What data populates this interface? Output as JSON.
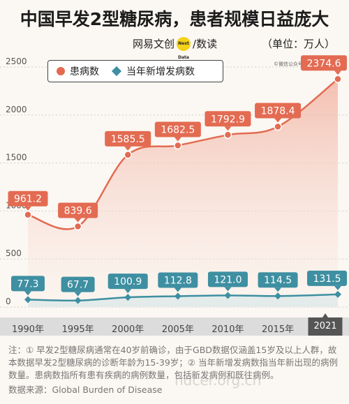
{
  "title": "中国早发2型糖尿病，患者规模日益庞大",
  "brand": {
    "left": "网易文创",
    "logo": "Next Data",
    "right": "/数读"
  },
  "unit": "（单位：万人）",
  "credit": "©微信公众号：谨慎君",
  "colors": {
    "patients": "#e36b52",
    "new_cases": "#3e8fa1"
  },
  "chart_data": {
    "type": "line",
    "x": [
      "1990年",
      "1995年",
      "2000年",
      "2005年",
      "2010年",
      "2015年",
      "2021年"
    ],
    "x_years": [
      1990,
      1995,
      2000,
      2005,
      2010,
      2015,
      2021
    ],
    "yticks": [
      "0",
      "500",
      "1000",
      "1500",
      "2000",
      "2500"
    ],
    "ylim": [
      0,
      2500
    ],
    "legend_position": "top-left",
    "series": [
      {
        "name": "患病数",
        "values": [
          961.2,
          839.6,
          1585.5,
          1682.5,
          1792.9,
          1878.4,
          2374.6
        ],
        "labels": [
          "961.2",
          "839.6",
          "1585.5",
          "1682.5",
          "1792.9",
          "1878.4",
          "2374.6"
        ]
      },
      {
        "name": "当年新增发病数",
        "values": [
          77.3,
          67.7,
          100.9,
          112.8,
          121.0,
          114.5,
          131.5
        ],
        "labels": [
          "77.3",
          "67.7",
          "100.9",
          "112.8",
          "121.0",
          "114.5",
          "131.5"
        ]
      }
    ]
  },
  "notes": "注：① 早发2型糖尿病通常在40岁前确诊，由于GBD数据仅涵盖15岁及以上人群，故本数据早发2型糖尿病的诊断年龄为15-39岁；② 当年新增发病数指当年新出现的病例数量。患病数指所有患有疾病的病例数量，包括新发病例和既往病例。",
  "source": "数据来源：Global Burden of Disease",
  "watermark": "hdcer.org.cn"
}
